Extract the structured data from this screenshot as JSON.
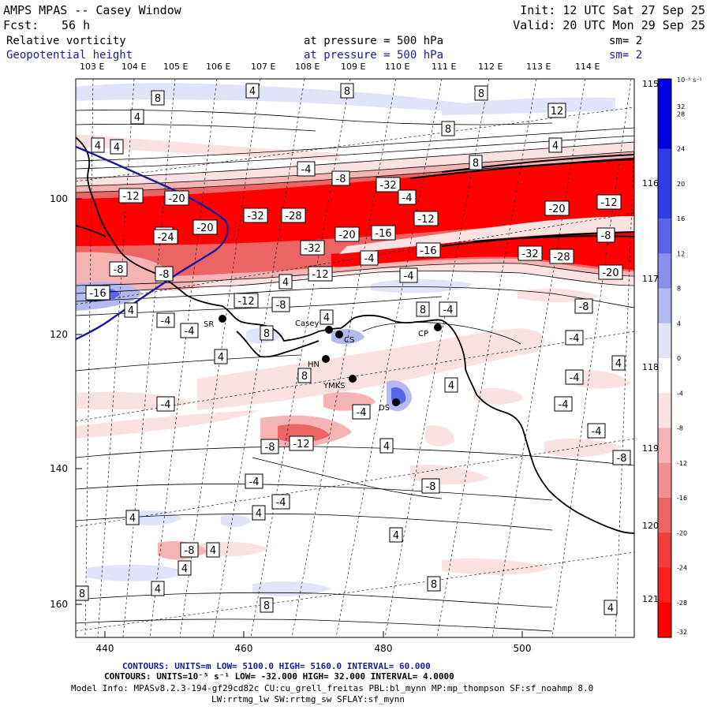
{
  "header": {
    "title": "AMPS MPAS -- Casey Window",
    "init": "Init: 12 UTC Sat 27 Sep 25",
    "fcst_label": "Fcst:",
    "fcst_value": "56 h",
    "valid": "Valid: 20 UTC Mon 29 Sep 25",
    "field1_name": "Relative vorticity",
    "field1_level": "at pressure =  500 hPa",
    "field1_sm": "sm= 2",
    "field2_name": "Geopotential height",
    "field2_level": "at pressure =  500 hPa",
    "field2_sm": "sm= 2"
  },
  "map": {
    "top_lon_labels": [
      "103 E",
      "104 E",
      "105 E",
      "106 E",
      "107 E",
      "108 E",
      "109 E",
      "110 E",
      "111 E",
      "112 E",
      "113 E",
      "114 E"
    ],
    "right_lon_labels": [
      "115 E",
      "116 E",
      "117 E",
      "118 E",
      "119 E",
      "120 E",
      "121 E"
    ],
    "x_ticks": [
      "440",
      "460",
      "480",
      "500"
    ],
    "y_ticks": [
      "100",
      "120",
      "140",
      "160"
    ],
    "stations": [
      "SR",
      "Casey",
      "CS",
      "HN",
      "YMKS",
      "CP",
      "DS"
    ],
    "contour_labels": [
      "8",
      "4",
      "8",
      "8",
      "12",
      "4",
      "8",
      "4",
      "4",
      "4",
      "8",
      "-4",
      "-8",
      "-32",
      "-4",
      "-12",
      "-20",
      "-12",
      "-20",
      "-32",
      "-28",
      "-12",
      "-8",
      "-20",
      "-24",
      "-20",
      "-16",
      "-8",
      "-32",
      "-4",
      "-16",
      "-32",
      "-28",
      "-12",
      "-4",
      "-20",
      "-8",
      "-8",
      "-16",
      "4",
      "-12",
      "-8",
      "-4",
      "-4",
      "4",
      "8",
      "4",
      "8",
      "-4",
      "-8",
      "4",
      "-4",
      "8",
      "-4",
      "4",
      "4",
      "-4",
      "-4",
      "-4",
      "-8",
      "-4",
      "-12",
      "-8",
      "-4",
      "-8",
      "4",
      "-4",
      "4",
      "4",
      "-8",
      "4",
      "4",
      "4",
      "8",
      "8",
      "8",
      "4",
      "4"
    ]
  },
  "colorbar": {
    "unit": "10⁻⁵ s⁻¹",
    "tick_labels": [
      "32",
      "28",
      "24",
      "20",
      "16",
      "12",
      "8",
      "4",
      "0",
      "-4",
      "-8",
      "-12",
      "-16",
      "-20",
      "-24",
      "-28",
      "-32"
    ],
    "colors": {
      "blue_strong": "#0000e0",
      "blue_mid": "#5a64e8",
      "blue_light": "#b4b9f0",
      "blue_pale": "#e1e3f8",
      "red_pale": "#fbe2e2",
      "red_light": "#f5b4b4",
      "red_mid": "#ec6464",
      "red_strong": "#ff0000"
    }
  },
  "footer": {
    "line1": "CONTOURS:  UNITS=m   LOW=  5100.0         HIGH=  5160.0         INTERVAL=   60.000",
    "line2": "CONTOURS:  UNITS=10⁻⁵ s⁻¹  LOW= -32.000         HIGH=  32.000         INTERVAL=   4.0000",
    "line3": "Model Info: MPASv8.2.3-194-gf29cd82c CU:cu_grell_freitas PBL:bl_mynn MP:mp_thompson SF:sf_noahmp 8.0",
    "line4": "LW:rrtmg_lw SW:rrtmg_sw SFLAY:sf_mynn"
  }
}
